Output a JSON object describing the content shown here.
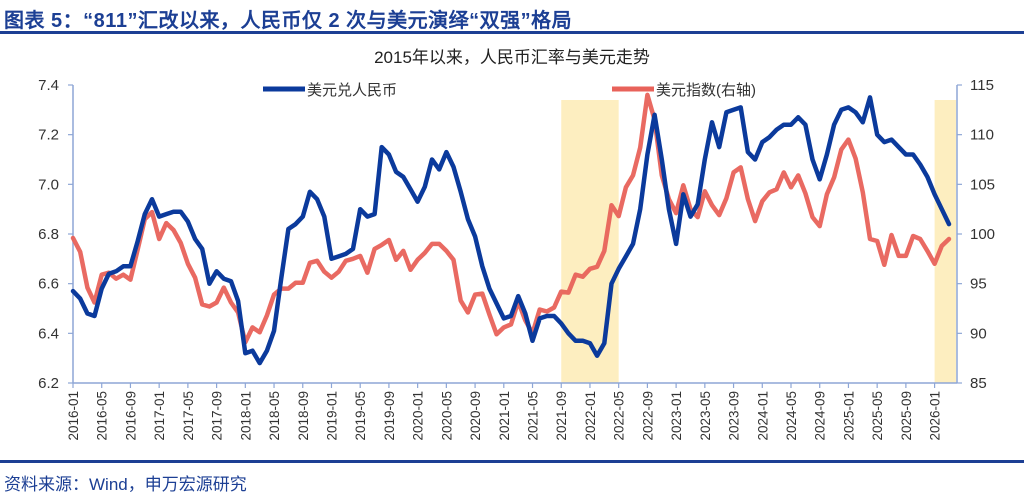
{
  "header": {
    "title": "图表 5：“811”汇改以来，人民币仅 2 次与美元演绎“双强”格局"
  },
  "footer": {
    "source": "资料来源：Wind，申万宏源研究"
  },
  "colors": {
    "usdcny": "#0b3a9c",
    "dxy": "#e8625a",
    "shade": "#fdeec0",
    "axis": "#8ea6d6",
    "header": "#1c3f94"
  },
  "chart_data": {
    "type": "line",
    "title": "2015年以来，人民币汇率与美元走势",
    "x_start": "2016-01",
    "x_end": "2026-04",
    "x_tick_labels": [
      "2016-01",
      "2016-05",
      "2016-09",
      "2017-01",
      "2017-05",
      "2017-09",
      "2018-01",
      "2018-05",
      "2018-09",
      "2019-01",
      "2019-05",
      "2019-09",
      "2020-01",
      "2020-05",
      "2020-09",
      "2021-01",
      "2021-05",
      "2021-09",
      "2022-01",
      "2022-05",
      "2022-09",
      "2023-01",
      "2023-05",
      "2023-09",
      "2024-01",
      "2024-05",
      "2024-09",
      "2025-01",
      "2025-05",
      "2025-09",
      "2026-01"
    ],
    "y_left": {
      "min": 6.2,
      "max": 7.4,
      "step": 0.2,
      "ticks": [
        "6.2",
        "6.4",
        "6.6",
        "6.8",
        "7.0",
        "7.2",
        "7.4"
      ]
    },
    "y_right": {
      "min": 85,
      "max": 115,
      "step": 5,
      "ticks": [
        "85",
        "90",
        "95",
        "100",
        "105",
        "110",
        "115"
      ]
    },
    "legend_placement": "top",
    "grid": false,
    "shaded_periods": [
      [
        "2021-09",
        "2022-04"
      ],
      [
        "2026-01",
        "2026-03"
      ]
    ],
    "series": [
      {
        "name": "美元兑人民币",
        "axis": "left",
        "frequency": "monthly",
        "start": "2016-01",
        "values": [
          6.57,
          6.54,
          6.48,
          6.47,
          6.58,
          6.64,
          6.65,
          6.67,
          6.67,
          6.77,
          6.88,
          6.94,
          6.87,
          6.88,
          6.89,
          6.89,
          6.85,
          6.78,
          6.74,
          6.6,
          6.65,
          6.62,
          6.61,
          6.53,
          6.32,
          6.33,
          6.28,
          6.33,
          6.41,
          6.62,
          6.82,
          6.84,
          6.87,
          6.97,
          6.94,
          6.87,
          6.7,
          6.71,
          6.72,
          6.74,
          6.9,
          6.87,
          6.88,
          7.15,
          7.12,
          7.05,
          7.03,
          6.98,
          6.93,
          6.99,
          7.1,
          7.06,
          7.13,
          7.07,
          6.97,
          6.86,
          6.79,
          6.67,
          6.58,
          6.52,
          6.46,
          6.47,
          6.55,
          6.48,
          6.37,
          6.46,
          6.47,
          6.47,
          6.44,
          6.4,
          6.37,
          6.37,
          6.36,
          6.31,
          6.36,
          6.6,
          6.66,
          6.71,
          6.76,
          6.9,
          7.12,
          7.28,
          7.1,
          6.9,
          6.76,
          6.96,
          6.87,
          6.92,
          7.1,
          7.25,
          7.15,
          7.29,
          7.3,
          7.31,
          7.13,
          7.1,
          7.17,
          7.19,
          7.22,
          7.24,
          7.24,
          7.27,
          7.24,
          7.1,
          7.02,
          7.12,
          7.24,
          7.3,
          7.31,
          7.29,
          7.25,
          7.35,
          7.2,
          7.17,
          7.18,
          7.15,
          7.12,
          7.12,
          7.08,
          7.03,
          6.96,
          6.9,
          6.84
        ]
      },
      {
        "name": "美元指数(右轴)",
        "axis": "right",
        "frequency": "monthly",
        "start": "2016-01",
        "values": [
          99.6,
          98.2,
          94.6,
          93.1,
          95.9,
          96.1,
          95.5,
          95.9,
          95.4,
          98.4,
          101.5,
          102.2,
          99.5,
          101.1,
          100.4,
          99.1,
          97.0,
          95.6,
          92.9,
          92.7,
          93.1,
          94.6,
          93.1,
          92.1,
          89.1,
          90.6,
          90.1,
          91.8,
          93.9,
          94.5,
          94.5,
          95.1,
          95.1,
          97.1,
          97.3,
          96.2,
          95.6,
          96.2,
          97.3,
          97.5,
          97.8,
          96.1,
          98.5,
          98.9,
          99.4,
          97.4,
          98.3,
          96.4,
          97.4,
          98.1,
          99.0,
          99.0,
          98.3,
          97.4,
          93.3,
          92.1,
          93.9,
          94.0,
          91.9,
          89.9,
          90.6,
          90.9,
          93.2,
          91.3,
          90.0,
          92.4,
          92.2,
          92.6,
          94.2,
          94.1,
          95.9,
          95.7,
          96.5,
          96.7,
          98.3,
          102.9,
          101.8,
          104.7,
          105.9,
          108.7,
          114.0,
          111.5,
          105.9,
          103.5,
          102.1,
          104.9,
          102.5,
          101.7,
          104.3,
          102.9,
          101.9,
          103.6,
          106.2,
          106.7,
          103.5,
          101.3,
          103.3,
          104.2,
          104.5,
          106.2,
          104.7,
          105.9,
          104.1,
          101.7,
          100.8,
          104.0,
          105.7,
          108.5,
          109.5,
          107.6,
          104.2,
          99.5,
          99.3,
          96.9,
          99.9,
          97.8,
          97.8,
          99.8,
          99.5,
          98.3,
          97.0,
          98.8,
          99.5
        ]
      }
    ]
  }
}
